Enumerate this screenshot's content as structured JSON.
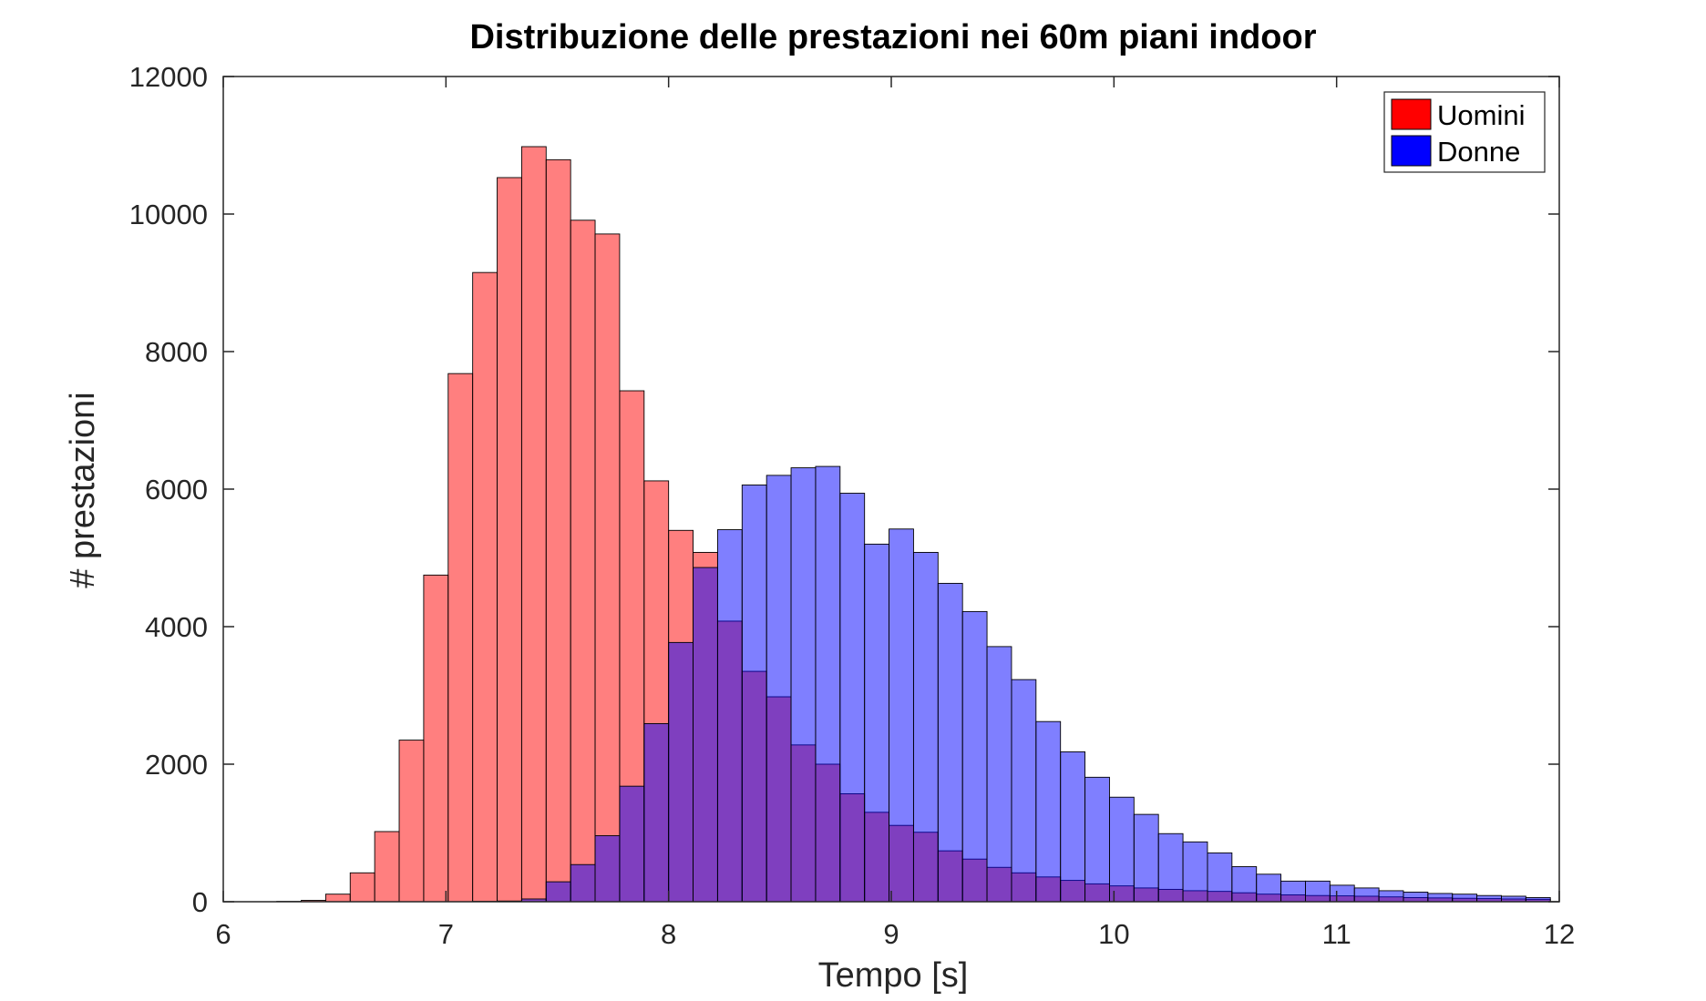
{
  "chart_data": {
    "type": "bar",
    "title": "Distribuzione delle prestazioni nei 60m piani indoor",
    "xlabel": "Tempo [s]",
    "ylabel": "# prestazioni",
    "xlim": [
      6,
      12
    ],
    "ylim": [
      0,
      12000
    ],
    "xticks": [
      6,
      7,
      8,
      9,
      10,
      11,
      12
    ],
    "yticks": [
      0,
      2000,
      4000,
      6000,
      8000,
      10000,
      12000
    ],
    "grid": false,
    "legend_position": "top-right",
    "bin_width": 0.11,
    "series": [
      {
        "name": "Uomini",
        "color": "#ff0000",
        "opacity": 0.5,
        "bin_starts": [
          6.02,
          6.13,
          6.24,
          6.35,
          6.46,
          6.57,
          6.68,
          6.79,
          6.9,
          7.01,
          7.12,
          7.23,
          7.34,
          7.45,
          7.56,
          7.67,
          7.78,
          7.89,
          8.0,
          8.11,
          8.22,
          8.33,
          8.44,
          8.55,
          8.66,
          8.77,
          8.88,
          8.99,
          9.1,
          9.21,
          9.32,
          9.43,
          9.54,
          9.65,
          9.76,
          9.87,
          9.98,
          10.09,
          10.2,
          10.31,
          10.42,
          10.53,
          10.64,
          10.75,
          10.86,
          10.97,
          11.08,
          11.19,
          11.3,
          11.41,
          11.52,
          11.63,
          11.74,
          11.85
        ],
        "values": [
          0,
          0,
          5,
          20,
          110,
          420,
          1020,
          2350,
          4750,
          7680,
          9150,
          10530,
          10980,
          10790,
          9910,
          9710,
          7430,
          6120,
          5400,
          5080,
          4080,
          3350,
          2980,
          2280,
          2000,
          1570,
          1300,
          1110,
          1010,
          740,
          620,
          500,
          420,
          360,
          310,
          260,
          230,
          200,
          180,
          160,
          150,
          130,
          110,
          100,
          90,
          85,
          80,
          70,
          60,
          55,
          50,
          45,
          40,
          35
        ]
      },
      {
        "name": "Donne",
        "color": "#0000ff",
        "opacity": 0.5,
        "bin_starts": [
          7.12,
          7.23,
          7.34,
          7.45,
          7.56,
          7.67,
          7.78,
          7.89,
          8.0,
          8.11,
          8.22,
          8.33,
          8.44,
          8.55,
          8.66,
          8.77,
          8.88,
          8.99,
          9.1,
          9.21,
          9.32,
          9.43,
          9.54,
          9.65,
          9.76,
          9.87,
          9.98,
          10.09,
          10.2,
          10.31,
          10.42,
          10.53,
          10.64,
          10.75,
          10.86,
          10.97,
          11.08,
          11.19,
          11.3,
          11.41,
          11.52,
          11.63,
          11.74,
          11.85
        ],
        "values": [
          5,
          10,
          40,
          290,
          540,
          960,
          1680,
          2590,
          3770,
          4860,
          5410,
          6060,
          6200,
          6310,
          6330,
          5940,
          5200,
          5420,
          5080,
          4630,
          4220,
          3710,
          3230,
          2620,
          2180,
          1810,
          1520,
          1270,
          990,
          870,
          710,
          510,
          400,
          300,
          300,
          240,
          200,
          160,
          140,
          120,
          110,
          90,
          80,
          60
        ]
      }
    ]
  }
}
